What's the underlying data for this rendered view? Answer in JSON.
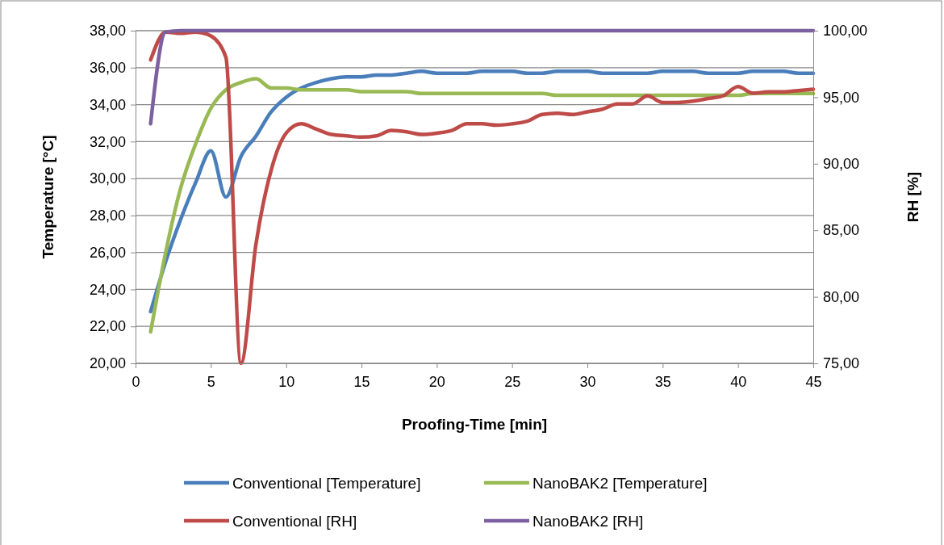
{
  "chart_data": {
    "type": "line",
    "xlabel": "Proofing-Time [min]",
    "ylabel": "Temperature [°C]",
    "y2label": "RH [%]",
    "x": [
      1,
      2,
      3,
      4,
      5,
      6,
      7,
      8,
      9,
      10,
      11,
      12,
      13,
      14,
      15,
      16,
      17,
      18,
      19,
      20,
      21,
      22,
      23,
      24,
      25,
      26,
      27,
      28,
      29,
      30,
      31,
      32,
      33,
      34,
      35,
      36,
      37,
      38,
      39,
      40,
      41,
      42,
      43,
      44,
      45
    ],
    "xlim": [
      0,
      45
    ],
    "xticks": [
      0,
      5,
      10,
      15,
      20,
      25,
      30,
      35,
      40,
      45
    ],
    "ylim": [
      20,
      38
    ],
    "yticks": [
      {
        "value": 20,
        "label": "20,00"
      },
      {
        "value": 22,
        "label": "22,00"
      },
      {
        "value": 24,
        "label": "24,00"
      },
      {
        "value": 26,
        "label": "26,00"
      },
      {
        "value": 28,
        "label": "28,00"
      },
      {
        "value": 30,
        "label": "30,00"
      },
      {
        "value": 32,
        "label": "32,00"
      },
      {
        "value": 34,
        "label": "34,00"
      },
      {
        "value": 36,
        "label": "36,00"
      },
      {
        "value": 38,
        "label": "38,00"
      }
    ],
    "y2lim": [
      75,
      100
    ],
    "y2ticks": [
      {
        "value": 75,
        "label": "75,00"
      },
      {
        "value": 80,
        "label": "80,00"
      },
      {
        "value": 85,
        "label": "85,00"
      },
      {
        "value": 90,
        "label": "90,00"
      },
      {
        "value": 95,
        "label": "95,00"
      },
      {
        "value": 100,
        "label": "100,00"
      }
    ],
    "grid": "y",
    "legend": "bottom",
    "marker": "none",
    "line_style": "solid",
    "series": [
      {
        "name": "Conventional [Temperature]",
        "color": "#4a7ebb",
        "values": [
          22.8,
          25.5,
          27.8,
          29.8,
          31.5,
          29.0,
          31.2,
          32.3,
          33.6,
          34.4,
          34.9,
          35.2,
          35.4,
          35.5,
          35.5,
          35.6,
          35.6,
          35.7,
          35.8,
          35.7,
          35.7,
          35.7,
          35.8,
          35.8,
          35.8,
          35.7,
          35.7,
          35.8,
          35.8,
          35.8,
          35.7,
          35.7,
          35.7,
          35.7,
          35.8,
          35.8,
          35.8,
          35.7,
          35.7,
          35.7,
          35.8,
          35.8,
          35.8,
          35.7,
          35.7
        ]
      },
      {
        "name": "NanoBAK2 [Temperature]",
        "color": "#98b954",
        "values": [
          21.7,
          26.0,
          29.5,
          31.9,
          33.8,
          34.8,
          35.2,
          35.4,
          34.9,
          34.9,
          34.8,
          34.8,
          34.8,
          34.8,
          34.7,
          34.7,
          34.7,
          34.7,
          34.6,
          34.6,
          34.6,
          34.6,
          34.6,
          34.6,
          34.6,
          34.6,
          34.6,
          34.5,
          34.5,
          34.5,
          34.5,
          34.5,
          34.5,
          34.5,
          34.5,
          34.5,
          34.5,
          34.5,
          34.5,
          34.5,
          34.6,
          34.6,
          34.6,
          34.6,
          34.6
        ]
      },
      {
        "name": "Conventional [RH]",
        "color": "#be4b48",
        "axis": "y2",
        "values": [
          97.8,
          99.9,
          99.8,
          99.9,
          99.6,
          98.0,
          75,
          84,
          89.5,
          92.3,
          93.0,
          92.6,
          92.2,
          92.1,
          92.0,
          92.1,
          92.5,
          92.4,
          92.2,
          92.3,
          92.5,
          93.0,
          93.0,
          92.9,
          93.0,
          93.2,
          93.7,
          93.8,
          93.7,
          93.9,
          94.1,
          94.5,
          94.5,
          95.1,
          94.6,
          94.6,
          94.7,
          94.9,
          95.1,
          95.8,
          95.3,
          95.4,
          95.4,
          95.5,
          95.6
        ]
      },
      {
        "name": "NanoBAK2 [RH]",
        "color": "#7d60a0",
        "axis": "y2",
        "values": [
          93.0,
          99.9,
          100,
          100,
          100,
          100,
          100,
          100,
          100,
          100,
          100,
          100,
          100,
          100,
          100,
          100,
          100,
          100,
          100,
          100,
          100,
          100,
          100,
          100,
          100,
          100,
          100,
          100,
          100,
          100,
          100,
          100,
          100,
          100,
          100,
          100,
          100,
          100,
          100,
          100,
          100,
          100,
          100,
          100,
          100
        ]
      }
    ]
  }
}
